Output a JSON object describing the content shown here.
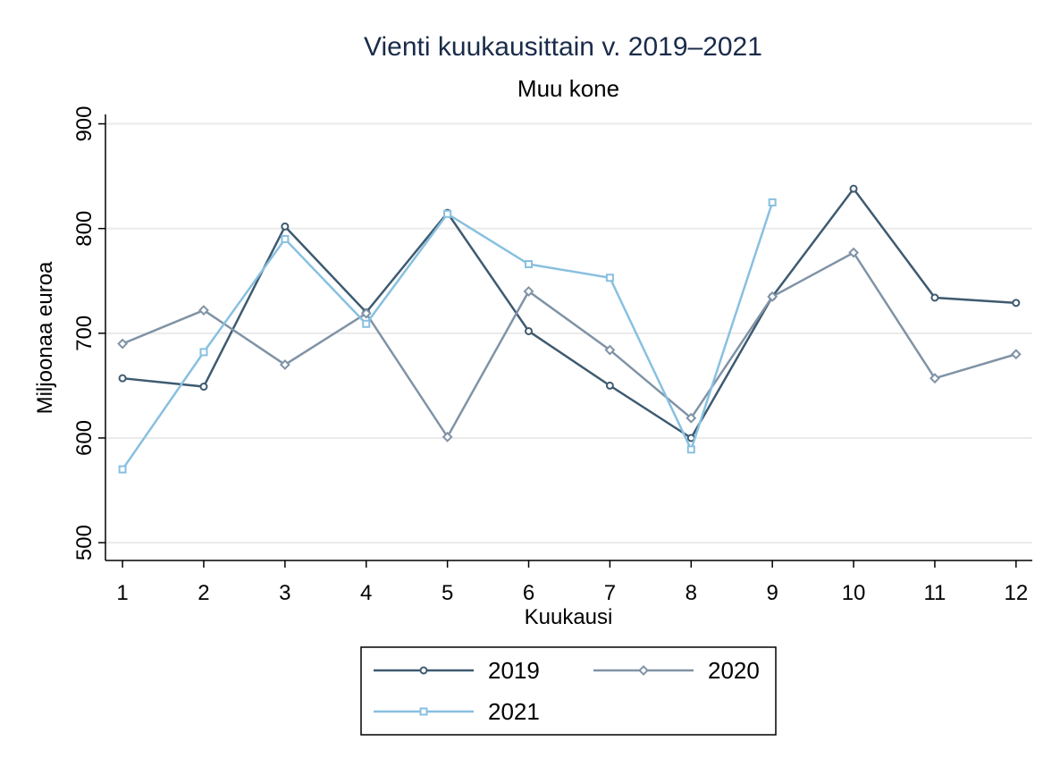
{
  "chart_data": {
    "type": "line",
    "title": "Vienti kuukausittain v. 2019–2021",
    "subtitle": "Muu kone",
    "x_label": "Kuukausi",
    "y_label": "Miljoonaa euroa",
    "x": [
      1,
      2,
      3,
      4,
      5,
      6,
      7,
      8,
      9,
      10,
      11,
      12
    ],
    "xlim": [
      0.79,
      12.2
    ],
    "xticks": [
      1,
      2,
      3,
      4,
      5,
      6,
      7,
      8,
      9,
      10,
      11,
      12
    ],
    "ylim": [
      483,
      909
    ],
    "yticks": [
      500,
      600,
      700,
      800,
      900
    ],
    "grid": true,
    "series": [
      {
        "name": "2019",
        "color": "#3e5a70",
        "marker": "circle",
        "values": [
          657,
          649,
          802,
          720,
          815,
          702,
          650,
          600,
          735,
          838,
          734,
          729
        ]
      },
      {
        "name": "2020",
        "color": "#8093a6",
        "marker": "diamond",
        "values": [
          690,
          722,
          670,
          719,
          601,
          740,
          684,
          619,
          735,
          777,
          657,
          680
        ]
      },
      {
        "name": "2021",
        "color": "#88c0e0",
        "marker": "square",
        "values": [
          570,
          682,
          790,
          709,
          814,
          766,
          753,
          589,
          825,
          null,
          null,
          null
        ]
      }
    ]
  }
}
